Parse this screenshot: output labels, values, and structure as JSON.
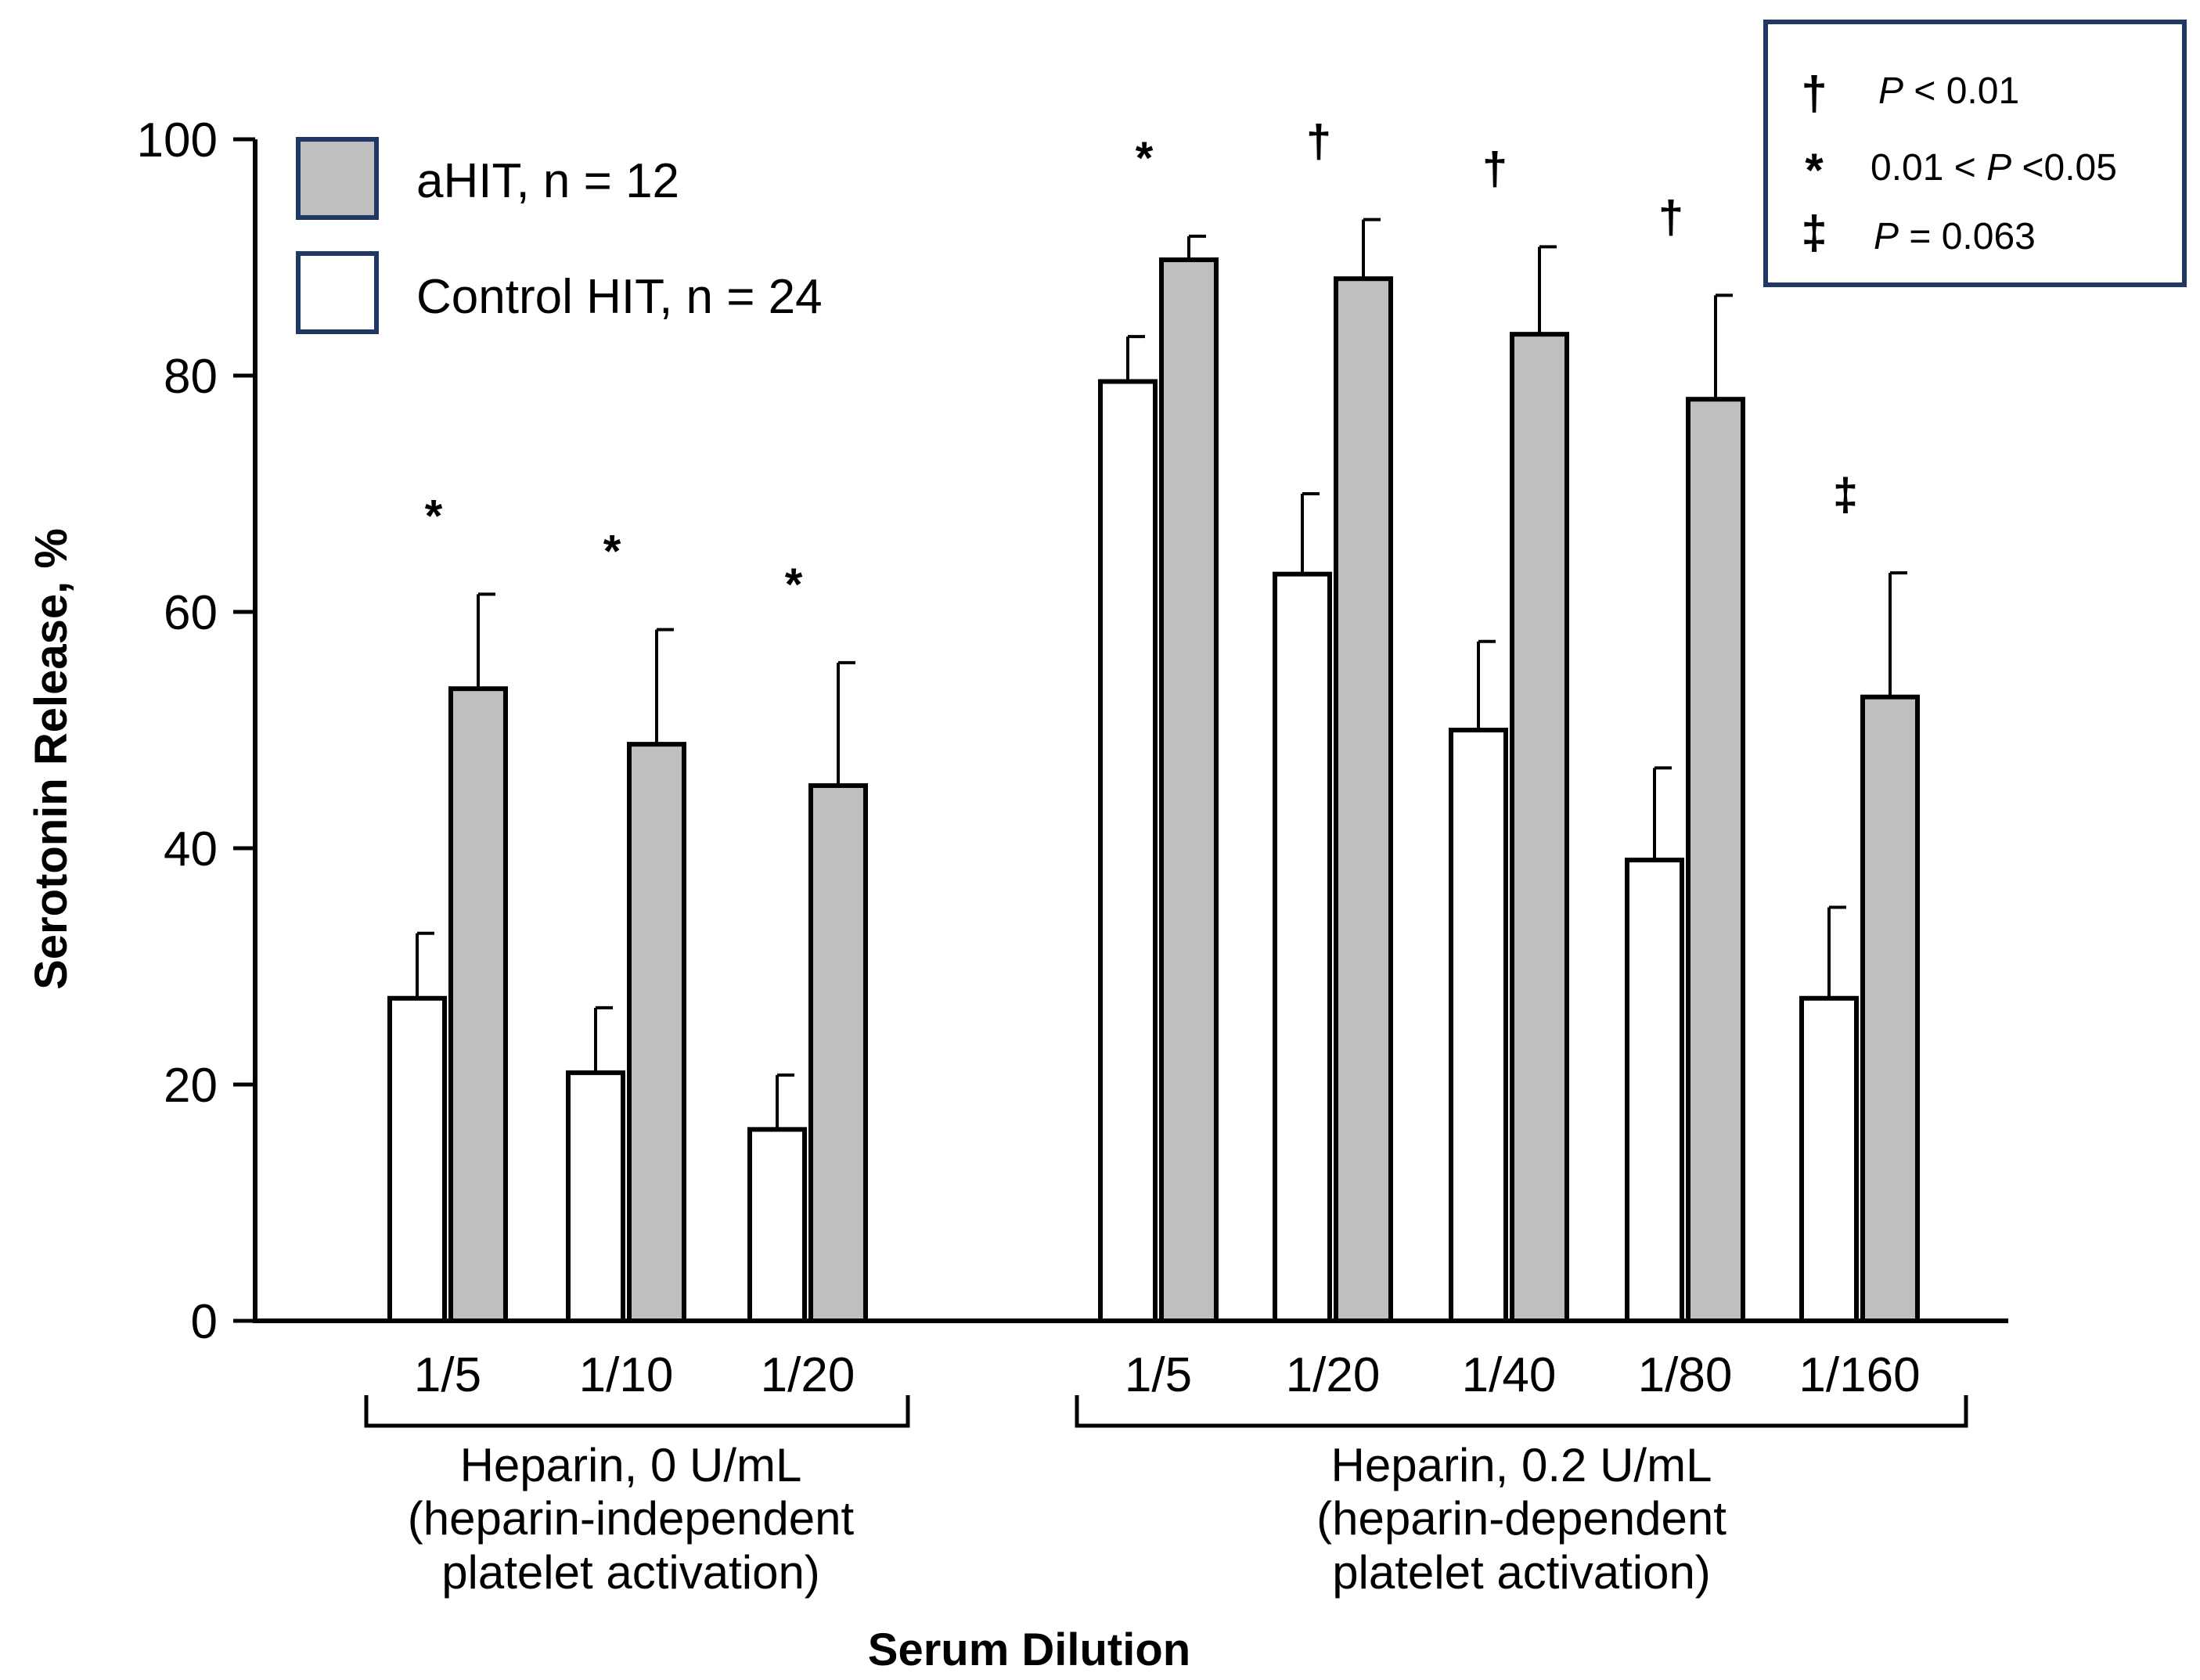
{
  "chart_data": {
    "type": "bar",
    "title": "",
    "ylabel": "Serotonin Release, %",
    "xlabel": "Serum Dilution",
    "ylim": [
      0,
      100
    ],
    "yticks": [
      0,
      20,
      40,
      60,
      80,
      100
    ],
    "legend": {
      "placement": "top-left",
      "entries": [
        {
          "series": "aHIT",
          "label": "aHIT, n = 12",
          "color": "#bfbfbf"
        },
        {
          "series": "control",
          "label": "Control HIT, n = 24",
          "color": "#ffffff"
        }
      ]
    },
    "groups": [
      {
        "label_line1": "Heparin, 0 U/mL",
        "label_line2": "(heparin-independent",
        "label_line3": "platelet activation)",
        "categories": [
          "1/5",
          "1/10",
          "1/20"
        ],
        "control": {
          "values": [
            27.3,
            21.0,
            16.2
          ],
          "errors": [
            5.5,
            5.5,
            4.6
          ]
        },
        "aHIT": {
          "values": [
            53.5,
            48.8,
            45.3
          ],
          "errors": [
            8.0,
            9.7,
            10.4
          ]
        },
        "significance": [
          "*",
          "*",
          "*"
        ]
      },
      {
        "label_line1": "Heparin, 0.2 U/mL",
        "label_line2": "(heparin-dependent",
        "label_line3": "platelet activation)",
        "categories": [
          "1/5",
          "1/20",
          "1/40",
          "1/80",
          "1/160"
        ],
        "control": {
          "values": [
            79.5,
            63.2,
            50.0,
            39.0,
            27.3
          ],
          "errors": [
            3.8,
            6.8,
            7.5,
            7.8,
            7.7
          ]
        },
        "aHIT": {
          "values": [
            89.8,
            88.2,
            83.5,
            78.0,
            52.8
          ],
          "errors": [
            2.0,
            5.0,
            7.4,
            8.8,
            10.5
          ]
        },
        "significance": [
          "*",
          "†",
          "†",
          "†",
          "‡"
        ]
      }
    ],
    "significance_key": [
      {
        "symbol": "†",
        "p_label": "P",
        "text": " < 0.01",
        "prefix": ""
      },
      {
        "symbol": "*",
        "p_label": "P",
        "text": " <0.05",
        "prefix": "0.01 < "
      },
      {
        "symbol": "‡",
        "p_label": "P",
        "text": " = 0.063",
        "prefix": ""
      }
    ],
    "colors": {
      "aHIT": "#bfbfbf",
      "control": "#ffffff",
      "frame": "#1f3864",
      "bar_edge": "#000000"
    }
  }
}
